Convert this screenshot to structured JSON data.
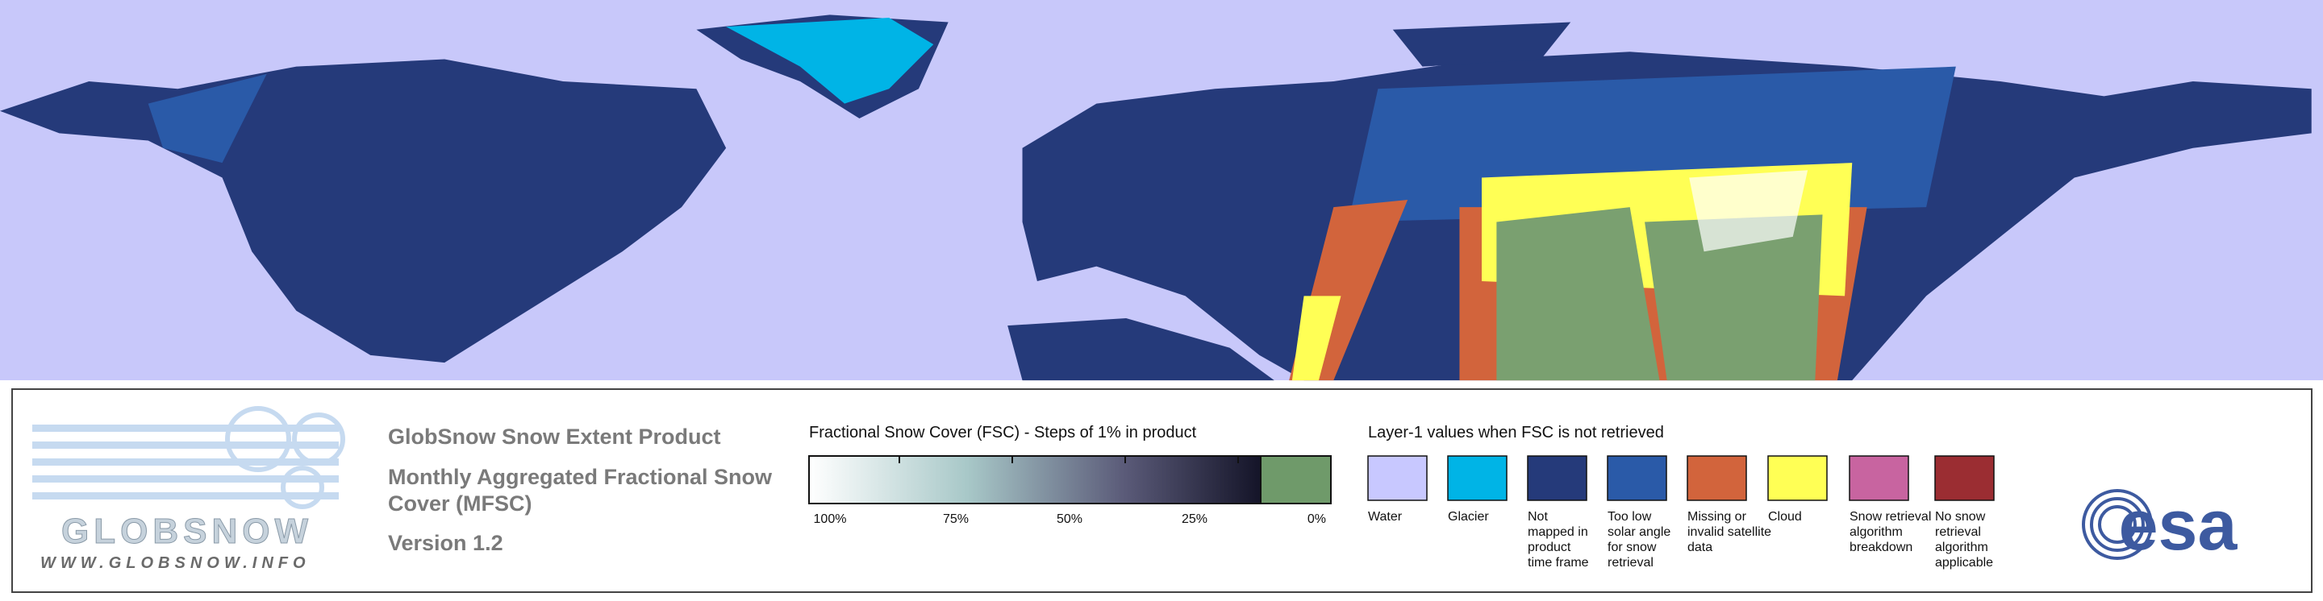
{
  "logo": {
    "name": "GLOBSNOW",
    "url": "WWW.GLOBSNOW.INFO"
  },
  "header": {
    "title": "GlobSnow Snow Extent Product",
    "subtitle": [
      "Monthly Aggregated Fractional Snow",
      "Cover (MFSC)"
    ],
    "version": "Version 1.2"
  },
  "colorbar": {
    "title": "Fractional Snow Cover (FSC) - Steps of 1% in product",
    "labels": [
      "100%",
      "75%",
      "50%",
      "25%",
      "0%"
    ]
  },
  "legend": {
    "title": "Layer-1 values when FSC is not retrieved",
    "items": [
      {
        "label": [
          "Water"
        ],
        "color": "#c8c8ff"
      },
      {
        "label": [
          "Glacier"
        ],
        "color": "#00b4e6"
      },
      {
        "label": [
          "Not",
          "mapped in",
          "product",
          "time frame"
        ],
        "color": "#253a7a"
      },
      {
        "label": [
          "Too low",
          "solar angle",
          "for snow",
          "retrieval"
        ],
        "color": "#2a5aa8"
      },
      {
        "label": [
          "Missing or",
          "invalid satellite",
          "data"
        ],
        "color": "#d2643c"
      },
      {
        "label": [
          "Cloud"
        ],
        "color": "#ffff55"
      },
      {
        "label": [
          "Snow retrieval",
          "algorithm",
          "breakdown"
        ],
        "color": "#c864a0"
      },
      {
        "label": [
          "No snow",
          "retrieval",
          "algorithm",
          "applicable"
        ],
        "color": "#9b2d32"
      }
    ]
  },
  "agency": "esa"
}
